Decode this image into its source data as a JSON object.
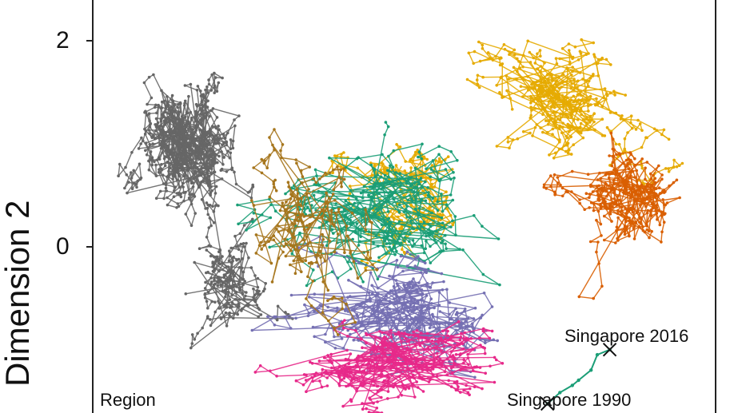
{
  "chart_data": {
    "type": "line",
    "title": "",
    "xlabel": "",
    "ylabel": "Dimension 2",
    "ylim": [
      -1.62,
      2.42
    ],
    "xlim": [
      0,
      1
    ],
    "yticks": [
      {
        "label": "2",
        "value": 2
      },
      {
        "label": "0",
        "value": 0
      }
    ],
    "legend_title": "Region",
    "grid": false,
    "series": [
      {
        "color": "#666666",
        "cx": 0.16,
        "cy": 1.0,
        "sx": 0.05,
        "sy": 0.45,
        "segments": 700
      },
      {
        "color": "#666666",
        "cx": 0.22,
        "cy": -0.4,
        "sx": 0.05,
        "sy": 0.35,
        "segments": 220
      },
      {
        "color": "#E6AB02",
        "cx": 0.74,
        "cy": 1.5,
        "sx": 0.08,
        "sy": 0.35,
        "segments": 420
      },
      {
        "color": "#E6AB02",
        "cx": 0.52,
        "cy": 0.5,
        "sx": 0.06,
        "sy": 0.4,
        "segments": 260
      },
      {
        "color": "#D95F02",
        "cx": 0.87,
        "cy": 0.5,
        "sx": 0.06,
        "sy": 0.4,
        "segments": 350
      },
      {
        "color": "#1B9E77",
        "cx": 0.45,
        "cy": 0.4,
        "sx": 0.14,
        "sy": 0.55,
        "segments": 380
      },
      {
        "color": "#7570B3",
        "cx": 0.5,
        "cy": -0.7,
        "sx": 0.12,
        "sy": 0.4,
        "segments": 420
      },
      {
        "color": "#E7298A",
        "cx": 0.5,
        "cy": -1.1,
        "sx": 0.11,
        "sy": 0.3,
        "segments": 420
      },
      {
        "color": "#A6761D",
        "cx": 0.33,
        "cy": 0.3,
        "sx": 0.07,
        "sy": 0.6,
        "segments": 200
      }
    ],
    "trajectory": {
      "color": "#1B9E77",
      "points": [
        [
          0.73,
          -1.53
        ],
        [
          0.75,
          -1.42
        ],
        [
          0.77,
          -1.35
        ],
        [
          0.78,
          -1.3
        ],
        [
          0.8,
          -1.2
        ],
        [
          0.81,
          -1.05
        ],
        [
          0.83,
          -1.0
        ]
      ]
    },
    "annotations": [
      {
        "text": "Singapore 2016",
        "x": 0.83,
        "y": -1.0
      },
      {
        "text": "Singapore 1990",
        "x": 0.73,
        "y": -1.53
      }
    ]
  }
}
